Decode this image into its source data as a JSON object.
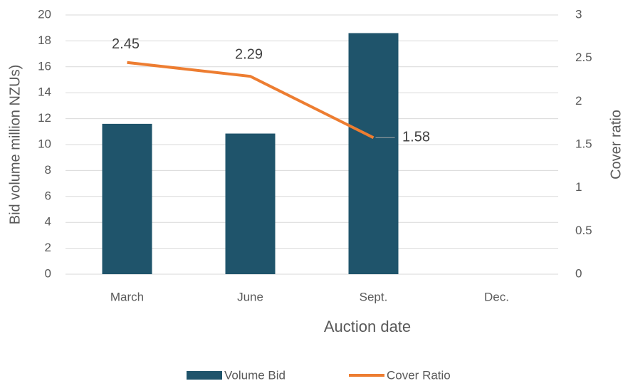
{
  "chart_data": {
    "type": "bar",
    "categories": [
      "March",
      "June",
      "Sept.",
      "Dec."
    ],
    "series": [
      {
        "name": "Volume Bid",
        "type": "bar",
        "color": "#1f546b",
        "values": [
          11.6,
          10.85,
          18.6,
          null
        ]
      },
      {
        "name": "Cover Ratio",
        "type": "line",
        "color": "#ed7d31",
        "axis": "y2",
        "values": [
          2.45,
          2.29,
          1.58,
          null
        ]
      }
    ],
    "ylim": [
      0,
      20
    ],
    "yticks": [
      0,
      2,
      4,
      6,
      8,
      10,
      12,
      14,
      16,
      18,
      20
    ],
    "y2lim": [
      0,
      3
    ],
    "y2ticks": [
      0,
      0.5,
      1,
      1.5,
      2,
      2.5,
      3
    ],
    "x_label": "Auction date",
    "y_label": "Bid volume million NZUs)",
    "y2_label": "Cover ratio",
    "grid": true,
    "legend": "bottom"
  }
}
